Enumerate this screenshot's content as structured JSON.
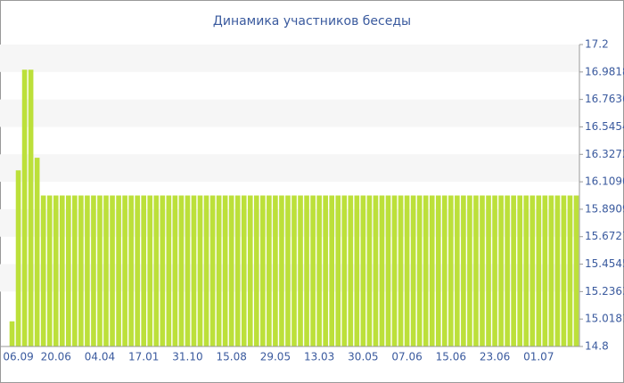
{
  "chart_data": {
    "type": "bar",
    "title": "Динамика участников беседы",
    "categories": [
      null,
      "06.09",
      null,
      null,
      null,
      null,
      null,
      "20.06",
      null,
      null,
      null,
      null,
      null,
      null,
      "04.04",
      null,
      null,
      null,
      null,
      null,
      null,
      "17.01",
      null,
      null,
      null,
      null,
      null,
      null,
      "31.10",
      null,
      null,
      null,
      null,
      null,
      null,
      "15.08",
      null,
      null,
      null,
      null,
      null,
      null,
      "29.05",
      null,
      null,
      null,
      null,
      null,
      null,
      "13.03",
      null,
      null,
      null,
      null,
      null,
      null,
      "30.05",
      null,
      null,
      null,
      null,
      null,
      null,
      "07.06",
      null,
      null,
      null,
      null,
      null,
      null,
      "15.06",
      null,
      null,
      null,
      null,
      null,
      null,
      "23.06",
      null,
      null,
      null,
      null,
      null,
      null,
      "01.07",
      null,
      null,
      null,
      null,
      null,
      null
    ],
    "values": [
      15,
      16.2,
      17,
      17,
      16.3,
      16,
      16,
      16,
      16,
      16,
      16,
      16,
      16,
      16,
      16,
      16,
      16,
      16,
      16,
      16,
      16,
      16,
      16,
      16,
      16,
      16,
      16,
      16,
      16,
      16,
      16,
      16,
      16,
      16,
      16,
      16,
      16,
      16,
      16,
      16,
      16,
      16,
      16,
      16,
      16,
      16,
      16,
      16,
      16,
      16,
      16,
      16,
      16,
      16,
      16,
      16,
      16,
      16,
      16,
      16,
      16,
      16,
      16,
      16,
      16,
      16,
      16,
      16,
      16,
      16,
      16,
      16,
      16,
      16,
      16,
      16,
      16,
      16,
      16,
      16,
      16,
      16,
      16,
      16,
      16,
      16,
      16,
      16,
      16,
      16,
      16
    ],
    "color": "#bce03a",
    "ylim": [
      14.8,
      17.2
    ],
    "yticks": [
      14.8,
      15.0181,
      15.2363,
      15.4545,
      15.6727,
      15.8909,
      {
        "value": 16.109,
        "label": "16.1090"
      },
      16.3272,
      16.5454,
      16.7636,
      16.9818,
      17.2
    ],
    "axis_side": "right",
    "grid": true
  }
}
